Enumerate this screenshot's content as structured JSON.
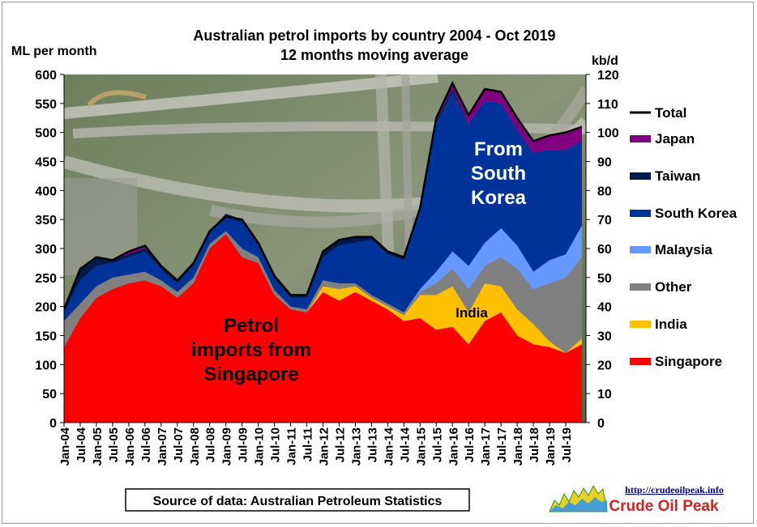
{
  "chart_data": {
    "type": "area",
    "title": "Australian petrol imports by country 2004 - Oct 2019",
    "subtitle": "12 months moving average",
    "ylabel": "ML per month",
    "ylabel_right": "kb/d",
    "ylim": [
      0,
      600
    ],
    "ylim_right": [
      0,
      120
    ],
    "yticks": [
      0,
      50,
      100,
      150,
      200,
      250,
      300,
      350,
      400,
      450,
      500,
      550,
      600
    ],
    "yticks_right": [
      0,
      10,
      20,
      30,
      40,
      50,
      60,
      70,
      80,
      90,
      100,
      110,
      120
    ],
    "x_tick_labels": [
      "Jan-04",
      "Jul-04",
      "Jan-05",
      "Jul-05",
      "Jan-06",
      "Jul-06",
      "Jan-07",
      "Jul-07",
      "Jan-08",
      "Jul-08",
      "Jan-09",
      "Jul-09",
      "Jan-10",
      "Jul-10",
      "Jan-11",
      "Jul-11",
      "Jan-12",
      "Jul-12",
      "Jan-13",
      "Jul-13",
      "Jan-14",
      "Jul-14",
      "Jan-15",
      "Jul-15",
      "Jan-16",
      "Jul-16",
      "Jan-17",
      "Jul-17",
      "Jan-18",
      "Jul-18",
      "Jan-19",
      "Jul-19"
    ],
    "x": [
      "Jan-04",
      "Jul-04",
      "Jan-05",
      "Jul-05",
      "Jan-06",
      "Jul-06",
      "Jan-07",
      "Jul-07",
      "Jan-08",
      "Jul-08",
      "Jan-09",
      "Jul-09",
      "Jan-10",
      "Jul-10",
      "Jan-11",
      "Jul-11",
      "Jan-12",
      "Jul-12",
      "Jan-13",
      "Jul-13",
      "Jan-14",
      "Jul-14",
      "Jan-15",
      "Jul-15",
      "Jan-16",
      "Jul-16",
      "Jan-17",
      "Jul-17",
      "Jan-18",
      "Jul-18",
      "Jan-19",
      "Jul-19",
      "Oct-19"
    ],
    "series": [
      {
        "name": "Singapore",
        "color": "#ff0000",
        "values": [
          130,
          180,
          215,
          230,
          240,
          245,
          235,
          215,
          240,
          300,
          325,
          285,
          275,
          220,
          195,
          190,
          225,
          210,
          225,
          210,
          195,
          175,
          180,
          160,
          165,
          135,
          175,
          190,
          150,
          135,
          130,
          120,
          135
        ]
      },
      {
        "name": "India",
        "color": "#ffc000",
        "values": [
          0,
          0,
          0,
          0,
          0,
          0,
          0,
          0,
          0,
          0,
          0,
          0,
          0,
          0,
          0,
          0,
          10,
          20,
          10,
          5,
          5,
          10,
          40,
          60,
          70,
          55,
          65,
          45,
          45,
          35,
          10,
          0,
          10
        ]
      },
      {
        "name": "Other",
        "color": "#808080",
        "values": [
          45,
          25,
          20,
          20,
          15,
          15,
          10,
          10,
          10,
          8,
          5,
          15,
          10,
          8,
          5,
          5,
          10,
          10,
          5,
          5,
          5,
          5,
          5,
          20,
          30,
          40,
          30,
          50,
          70,
          60,
          100,
          130,
          140
        ]
      },
      {
        "name": "Malaysia",
        "color": "#6699ff",
        "values": [
          0,
          0,
          0,
          0,
          0,
          0,
          0,
          0,
          0,
          0,
          0,
          0,
          0,
          0,
          0,
          0,
          0,
          0,
          0,
          0,
          0,
          0,
          5,
          20,
          30,
          40,
          40,
          50,
          40,
          30,
          40,
          40,
          55
        ]
      },
      {
        "name": "South Korea",
        "color": "#003399",
        "values": [
          15,
          40,
          35,
          25,
          30,
          35,
          20,
          15,
          20,
          20,
          25,
          45,
          20,
          20,
          15,
          20,
          40,
          65,
          70,
          95,
          85,
          90,
          135,
          255,
          275,
          245,
          245,
          215,
          200,
          205,
          190,
          180,
          145
        ]
      },
      {
        "name": "Taiwan",
        "color": "#001a4d",
        "values": [
          5,
          20,
          15,
          5,
          5,
          5,
          5,
          5,
          5,
          2,
          5,
          5,
          5,
          5,
          5,
          5,
          10,
          10,
          10,
          5,
          5,
          5,
          5,
          5,
          5,
          0,
          0,
          0,
          0,
          0,
          0,
          0,
          0
        ]
      },
      {
        "name": "Japan",
        "color": "#800080",
        "values": [
          0,
          0,
          0,
          0,
          5,
          5,
          0,
          0,
          0,
          0,
          0,
          0,
          0,
          0,
          0,
          0,
          0,
          0,
          0,
          0,
          0,
          0,
          0,
          5,
          10,
          15,
          20,
          20,
          20,
          20,
          25,
          30,
          25
        ]
      },
      {
        "name": "Total",
        "color": "#000000",
        "values": [
          195,
          265,
          285,
          280,
          295,
          305,
          270,
          245,
          275,
          330,
          355,
          350,
          310,
          253,
          220,
          220,
          295,
          315,
          320,
          320,
          295,
          285,
          370,
          525,
          585,
          530,
          575,
          570,
          525,
          485,
          495,
          500,
          510
        ]
      }
    ],
    "annotations": [
      "From South Korea",
      "India",
      "Petrol imports from Singapore"
    ],
    "legend_position": "right",
    "grid": false
  },
  "source_label": "Source of data: Australian Petroleum Statistics",
  "logo": {
    "url": "http://crudeoilpeak.info",
    "name": "Crude Oil Peak"
  }
}
